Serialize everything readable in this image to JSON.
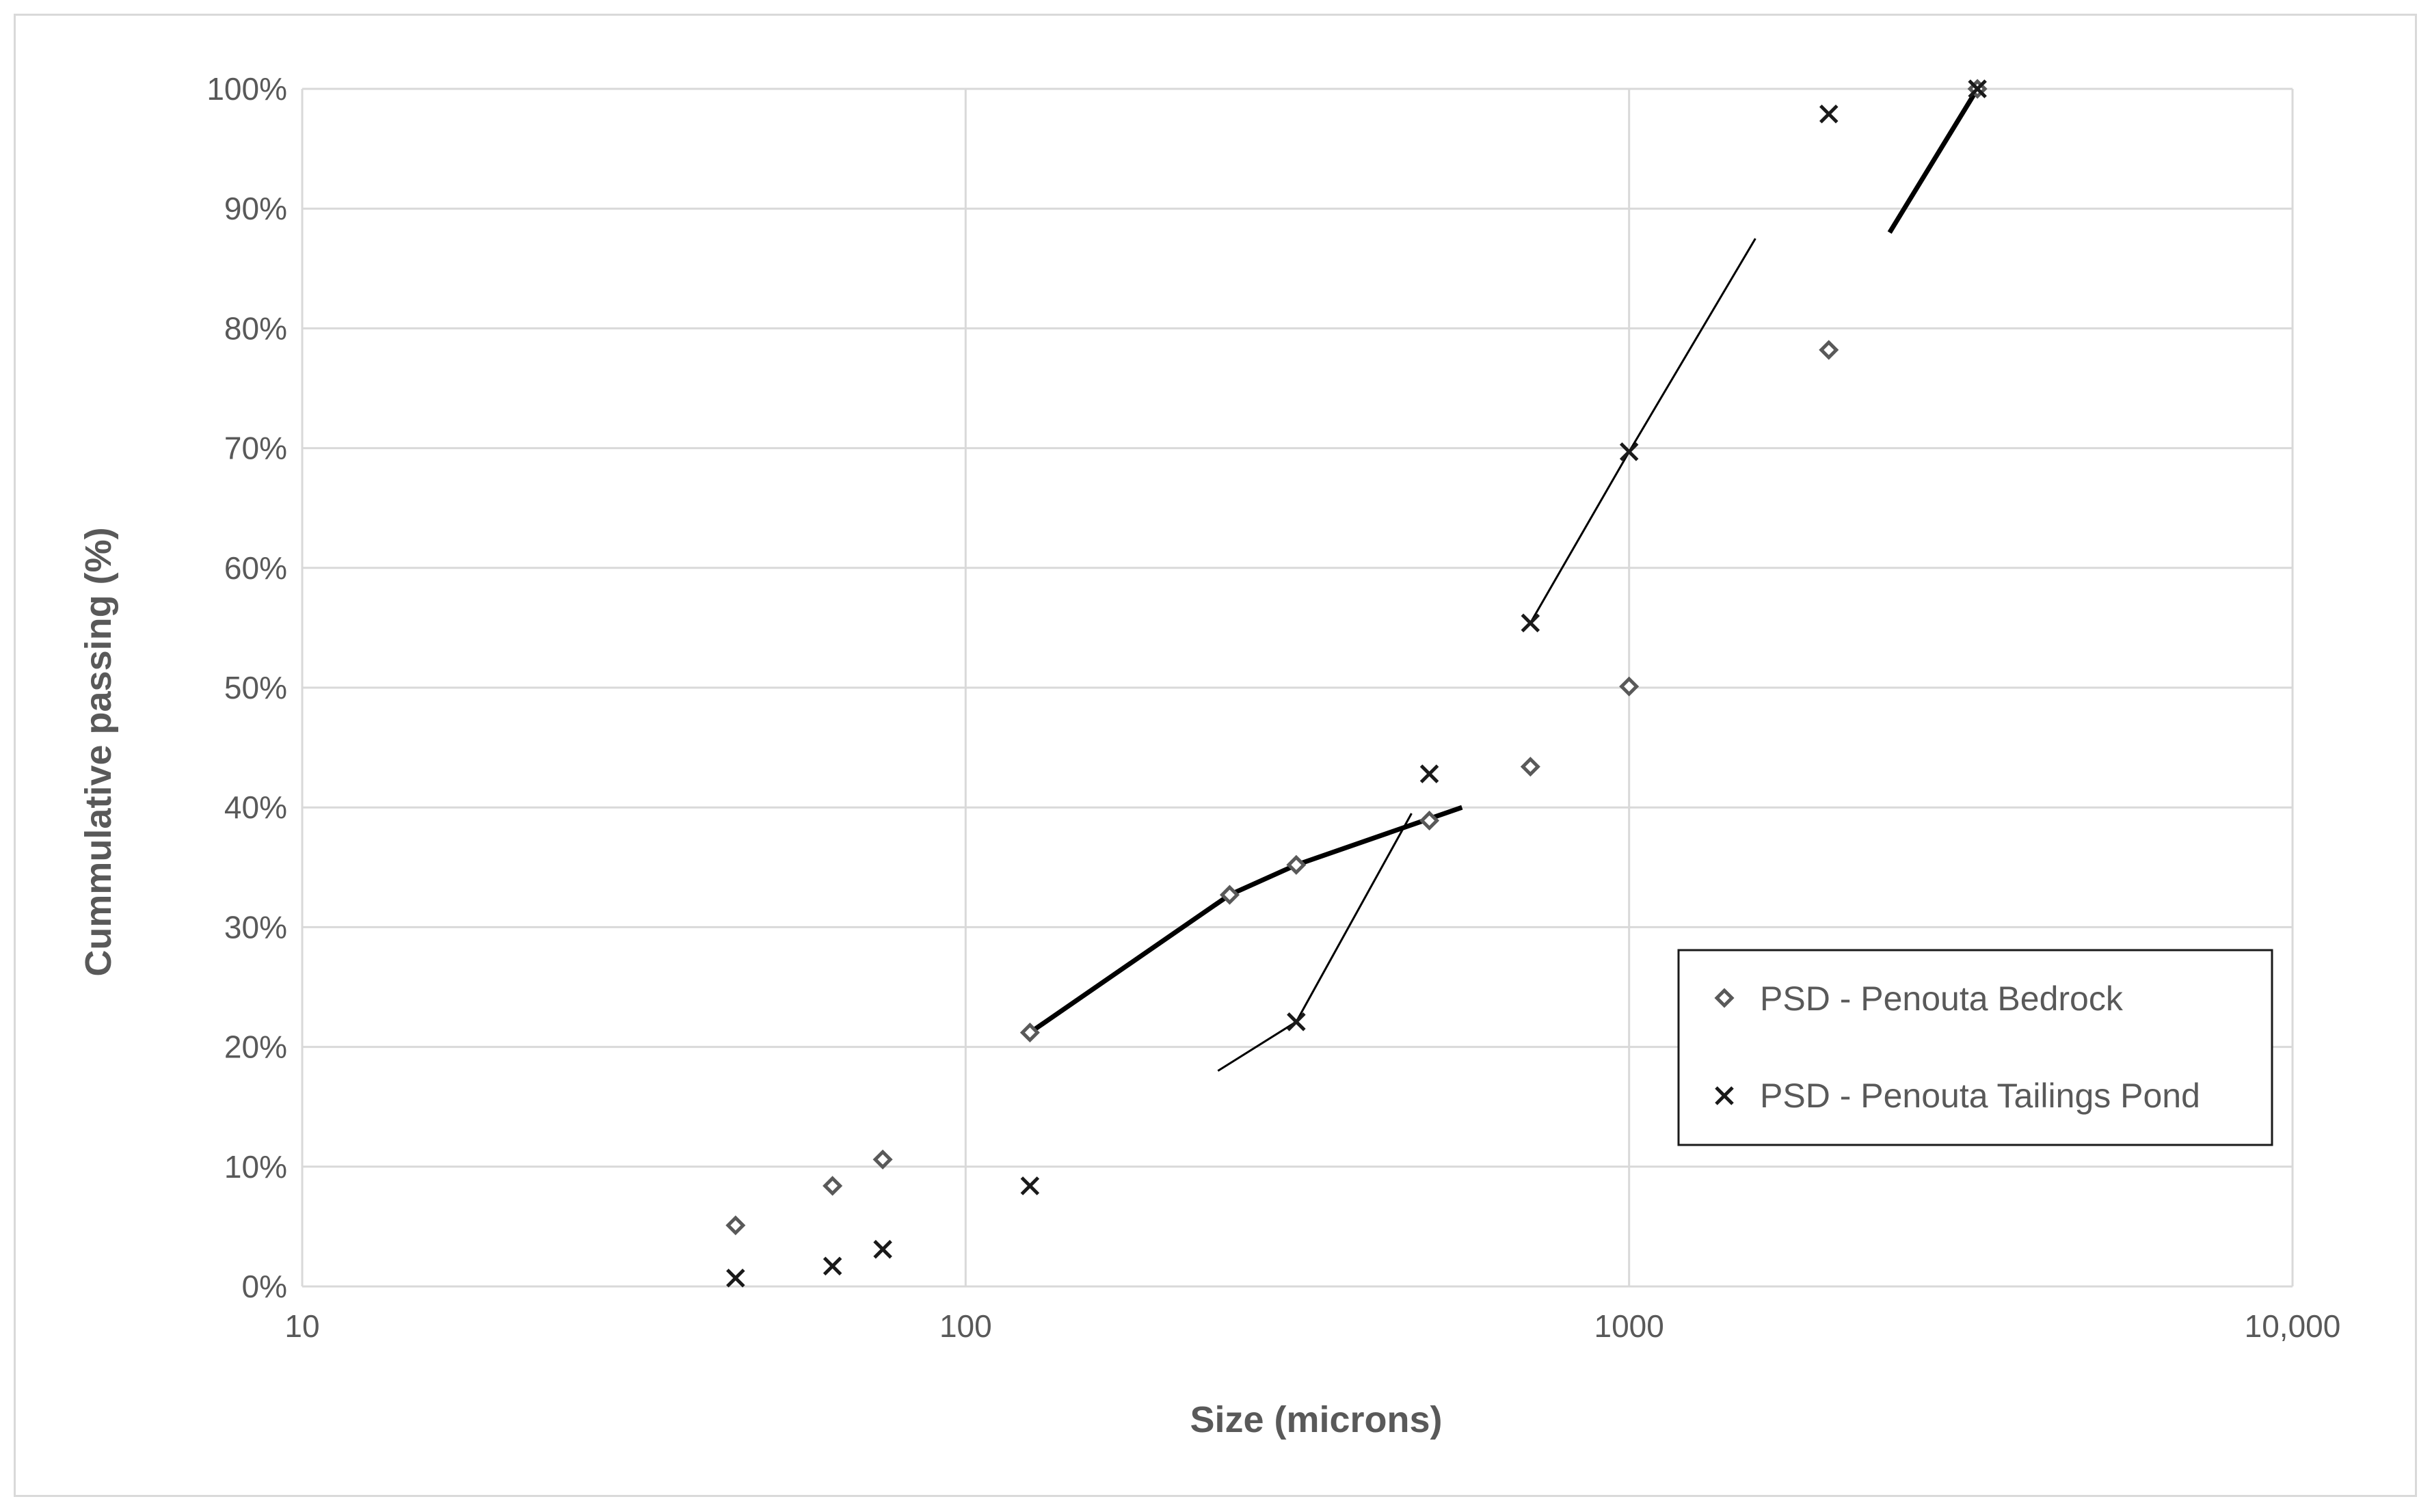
{
  "chart_data": {
    "type": "scatter",
    "xlabel": "Size (microns)",
    "ylabel": "Cummulative passing (%)",
    "x_scale": "log",
    "xlim": [
      10,
      10000
    ],
    "ylim": [
      0,
      100
    ],
    "x_ticks": [
      {
        "value": 10,
        "label": "10"
      },
      {
        "value": 100,
        "label": "100"
      },
      {
        "value": 1000,
        "label": "1000"
      },
      {
        "value": 10000,
        "label": "10,000"
      }
    ],
    "y_ticks": [
      {
        "value": 0,
        "label": "0%"
      },
      {
        "value": 10,
        "label": "10%"
      },
      {
        "value": 20,
        "label": "20%"
      },
      {
        "value": 30,
        "label": "30%"
      },
      {
        "value": 40,
        "label": "40%"
      },
      {
        "value": 50,
        "label": "50%"
      },
      {
        "value": 60,
        "label": "60%"
      },
      {
        "value": 70,
        "label": "70%"
      },
      {
        "value": 80,
        "label": "80%"
      },
      {
        "value": 90,
        "label": "90%"
      },
      {
        "value": 100,
        "label": "100%"
      }
    ],
    "grid": true,
    "legend_position": "bottom-right",
    "series": [
      {
        "name": "PSD - Penouta Bedrock",
        "marker": "diamond",
        "color": "#595959",
        "points": [
          [
            45,
            5.1
          ],
          [
            63,
            8.4
          ],
          [
            75,
            10.6
          ],
          [
            125,
            21.2
          ],
          [
            250,
            32.7
          ],
          [
            315,
            35.2
          ],
          [
            500,
            38.9
          ],
          [
            710,
            43.4
          ],
          [
            1000,
            50.1
          ],
          [
            2000,
            78.2
          ],
          [
            3350,
            100
          ]
        ]
      },
      {
        "name": "PSD - Penouta Tailings Pond",
        "marker": "x",
        "color": "#1a1a1a",
        "points": [
          [
            45,
            0.7
          ],
          [
            63,
            1.7
          ],
          [
            75,
            3.1
          ],
          [
            125,
            8.4
          ],
          [
            315,
            22.1
          ],
          [
            500,
            42.8
          ],
          [
            710,
            55.4
          ],
          [
            1000,
            69.7
          ],
          [
            2000,
            97.9
          ],
          [
            3350,
            100
          ]
        ]
      }
    ],
    "trend_lines": [
      {
        "width": "thick",
        "points": [
          [
            125,
            21.2
          ],
          [
            250,
            32.7
          ],
          [
            315,
            35.2
          ],
          [
            560,
            40
          ]
        ]
      },
      {
        "width": "thick",
        "points": [
          [
            2470,
            88
          ],
          [
            3350,
            100
          ]
        ]
      },
      {
        "width": "thin",
        "points": [
          [
            240,
            18
          ],
          [
            315,
            22.1
          ],
          [
            470,
            39.5
          ]
        ]
      },
      {
        "width": "thin",
        "points": [
          [
            710,
            55.4
          ],
          [
            1000,
            69.7
          ],
          [
            1550,
            87.5
          ]
        ]
      }
    ]
  }
}
